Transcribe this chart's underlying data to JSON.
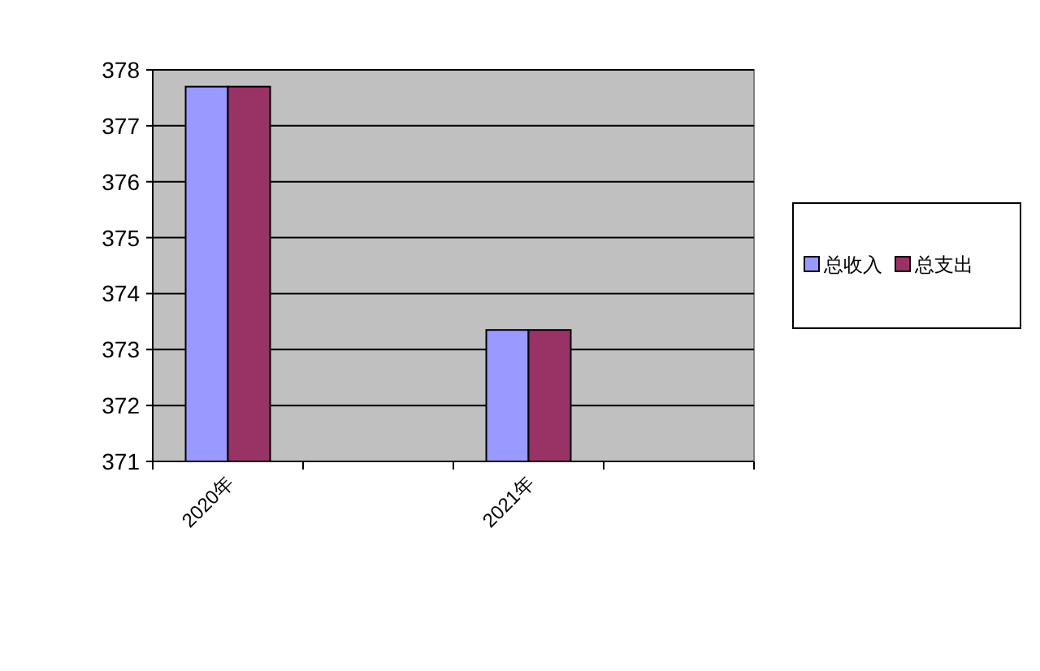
{
  "chart_data": {
    "type": "bar",
    "categories": [
      "2020年",
      null,
      "2021年",
      null
    ],
    "series": [
      {
        "name": "总收入",
        "color": "#9999ff",
        "values": [
          377.7,
          null,
          373.35,
          null
        ]
      },
      {
        "name": "总支出",
        "color": "#993366",
        "values": [
          377.7,
          null,
          373.35,
          null
        ]
      }
    ],
    "ylim": [
      371,
      378
    ],
    "yticks": [
      371,
      372,
      373,
      374,
      375,
      376,
      377,
      378
    ],
    "grid": "y",
    "legend": "right"
  }
}
